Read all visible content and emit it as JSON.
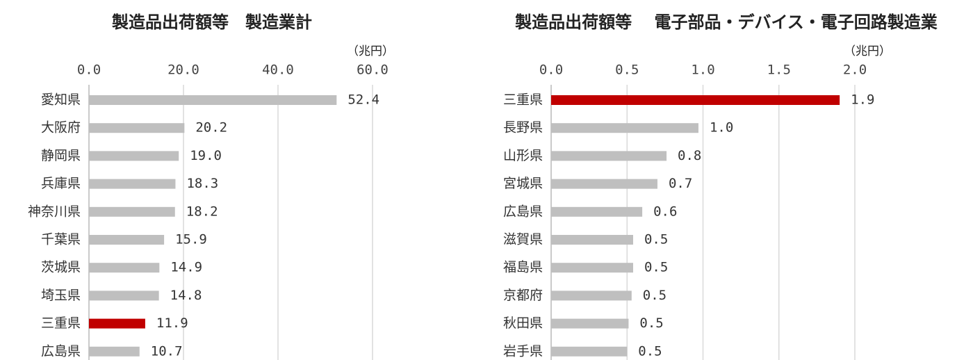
{
  "chart_data": [
    {
      "type": "bar",
      "orientation": "horizontal",
      "title": "製造品出荷額等　製造業計",
      "unit": "（兆円）",
      "categories": [
        "愛知県",
        "大阪府",
        "静岡県",
        "兵庫県",
        "神奈川県",
        "千葉県",
        "茨城県",
        "埼玉県",
        "三重県",
        "広島県"
      ],
      "values": [
        52.4,
        20.2,
        19.0,
        18.3,
        18.2,
        15.9,
        14.9,
        14.8,
        11.9,
        10.7
      ],
      "value_labels": [
        "52.4",
        "20.2",
        "19.0",
        "18.3",
        "18.2",
        "15.9",
        "14.9",
        "14.8",
        "11.9",
        "10.7"
      ],
      "colors": [
        "#bfbfbf",
        "#bfbfbf",
        "#bfbfbf",
        "#bfbfbf",
        "#bfbfbf",
        "#bfbfbf",
        "#bfbfbf",
        "#bfbfbf",
        "#c00000",
        "#bfbfbf"
      ],
      "xlim": [
        0,
        60
      ],
      "xticks": [
        {
          "value": 0,
          "label": "0.0"
        },
        {
          "value": 20,
          "label": "20.0"
        },
        {
          "value": 40,
          "label": "40.0"
        },
        {
          "value": 60,
          "label": "60.0"
        }
      ],
      "grid": true
    },
    {
      "type": "bar",
      "orientation": "horizontal",
      "title": "製造品出荷額等　 電子部品・デバイス・電子回路製造業",
      "unit": "（兆円）",
      "categories": [
        "三重県",
        "長野県",
        "山形県",
        "宮城県",
        "広島県",
        "滋賀県",
        "福島県",
        "京都府",
        "秋田県",
        "岩手県"
      ],
      "values": [
        1.9,
        0.97,
        0.76,
        0.7,
        0.6,
        0.54,
        0.54,
        0.53,
        0.51,
        0.5
      ],
      "value_labels": [
        "1.9",
        "1.0",
        "0.8",
        "0.7",
        "0.6",
        "0.5",
        "0.5",
        "0.5",
        "0.5",
        "0.5"
      ],
      "colors": [
        "#c00000",
        "#bfbfbf",
        "#bfbfbf",
        "#bfbfbf",
        "#bfbfbf",
        "#bfbfbf",
        "#bfbfbf",
        "#bfbfbf",
        "#bfbfbf",
        "#bfbfbf"
      ],
      "xlim": [
        0,
        2
      ],
      "xticks": [
        {
          "value": 0,
          "label": "0.0"
        },
        0.5,
        {
          "value": 1,
          "label": "1.0"
        },
        1.5,
        {
          "value": 2,
          "label": "2.0"
        }
      ],
      "grid": true
    }
  ]
}
